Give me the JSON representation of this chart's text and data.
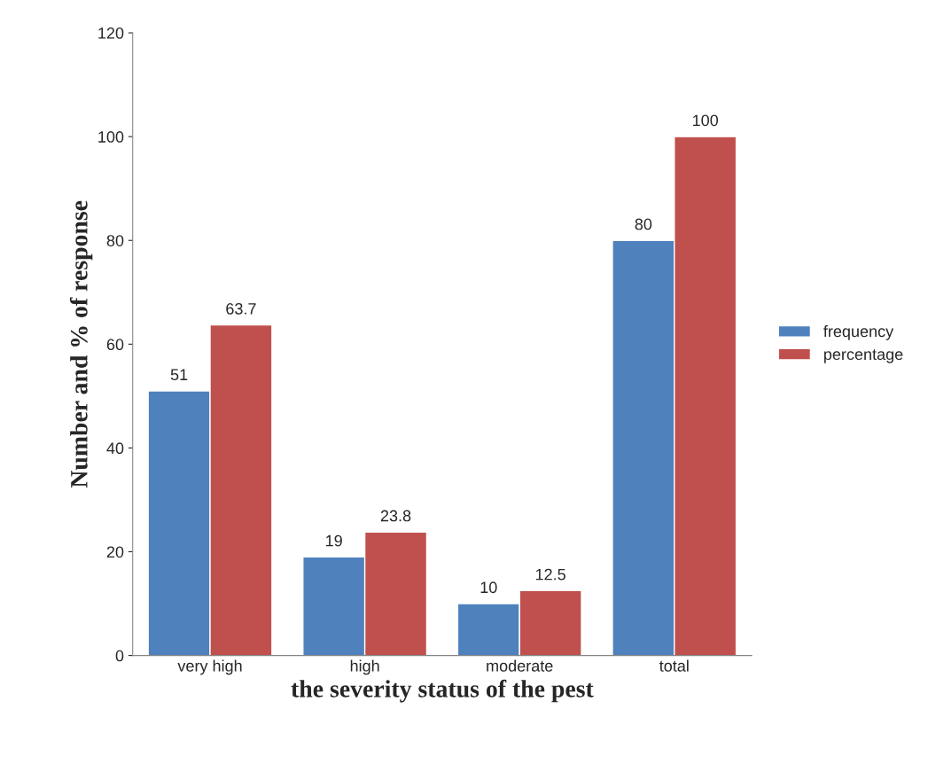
{
  "chart_data": {
    "type": "bar",
    "xlabel": "the severity status of the pest",
    "ylabel": "Number and % of response",
    "categories": [
      "very high",
      "high",
      "moderate",
      "total"
    ],
    "series": [
      {
        "name": "frequency",
        "color": "#4f81bd",
        "values": [
          51,
          19,
          10,
          80
        ]
      },
      {
        "name": "percentage",
        "color": "#c0504d",
        "values": [
          63.7,
          23.8,
          12.5,
          100
        ]
      }
    ],
    "ylim": [
      0,
      120
    ],
    "yticks": [
      0,
      20,
      40,
      60,
      80,
      100,
      120
    ],
    "grid": false,
    "legend": "right",
    "data_labels": true
  }
}
